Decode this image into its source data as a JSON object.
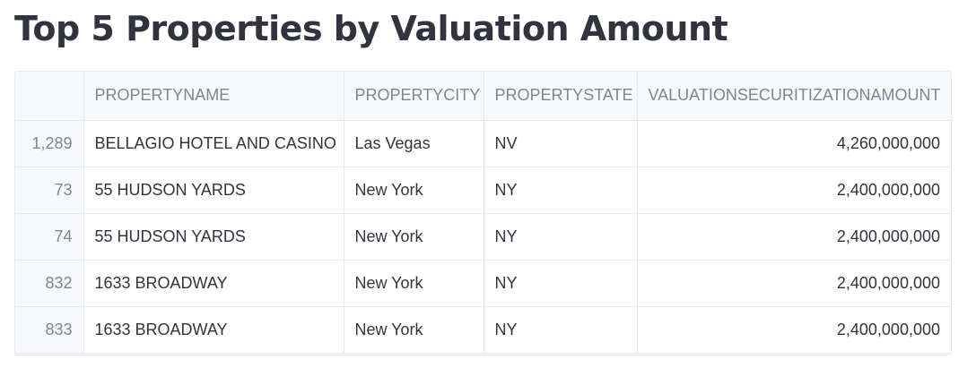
{
  "page": {
    "title": "Top 5 Properties by Valuation Amount"
  },
  "table": {
    "columns": [
      "",
      "PROPERTYNAME",
      "PROPERTYCITY",
      "PROPERTYSTATE",
      "VALUATIONSECURITIZATIONAMOUNT"
    ],
    "rows": [
      {
        "index": "1,289",
        "name": "BELLAGIO HOTEL AND CASINO",
        "city": "Las Vegas",
        "state": "NV",
        "amount": "4,260,000,000"
      },
      {
        "index": "73",
        "name": "55 HUDSON YARDS",
        "city": "New York",
        "state": "NY",
        "amount": "2,400,000,000"
      },
      {
        "index": "74",
        "name": "55 HUDSON YARDS",
        "city": "New York",
        "state": "NY",
        "amount": "2,400,000,000"
      },
      {
        "index": "832",
        "name": "1633 BROADWAY",
        "city": "New York",
        "state": "NY",
        "amount": "2,400,000,000"
      },
      {
        "index": "833",
        "name": "1633 BROADWAY",
        "city": "New York",
        "state": "NY",
        "amount": "2,400,000,000"
      }
    ]
  }
}
